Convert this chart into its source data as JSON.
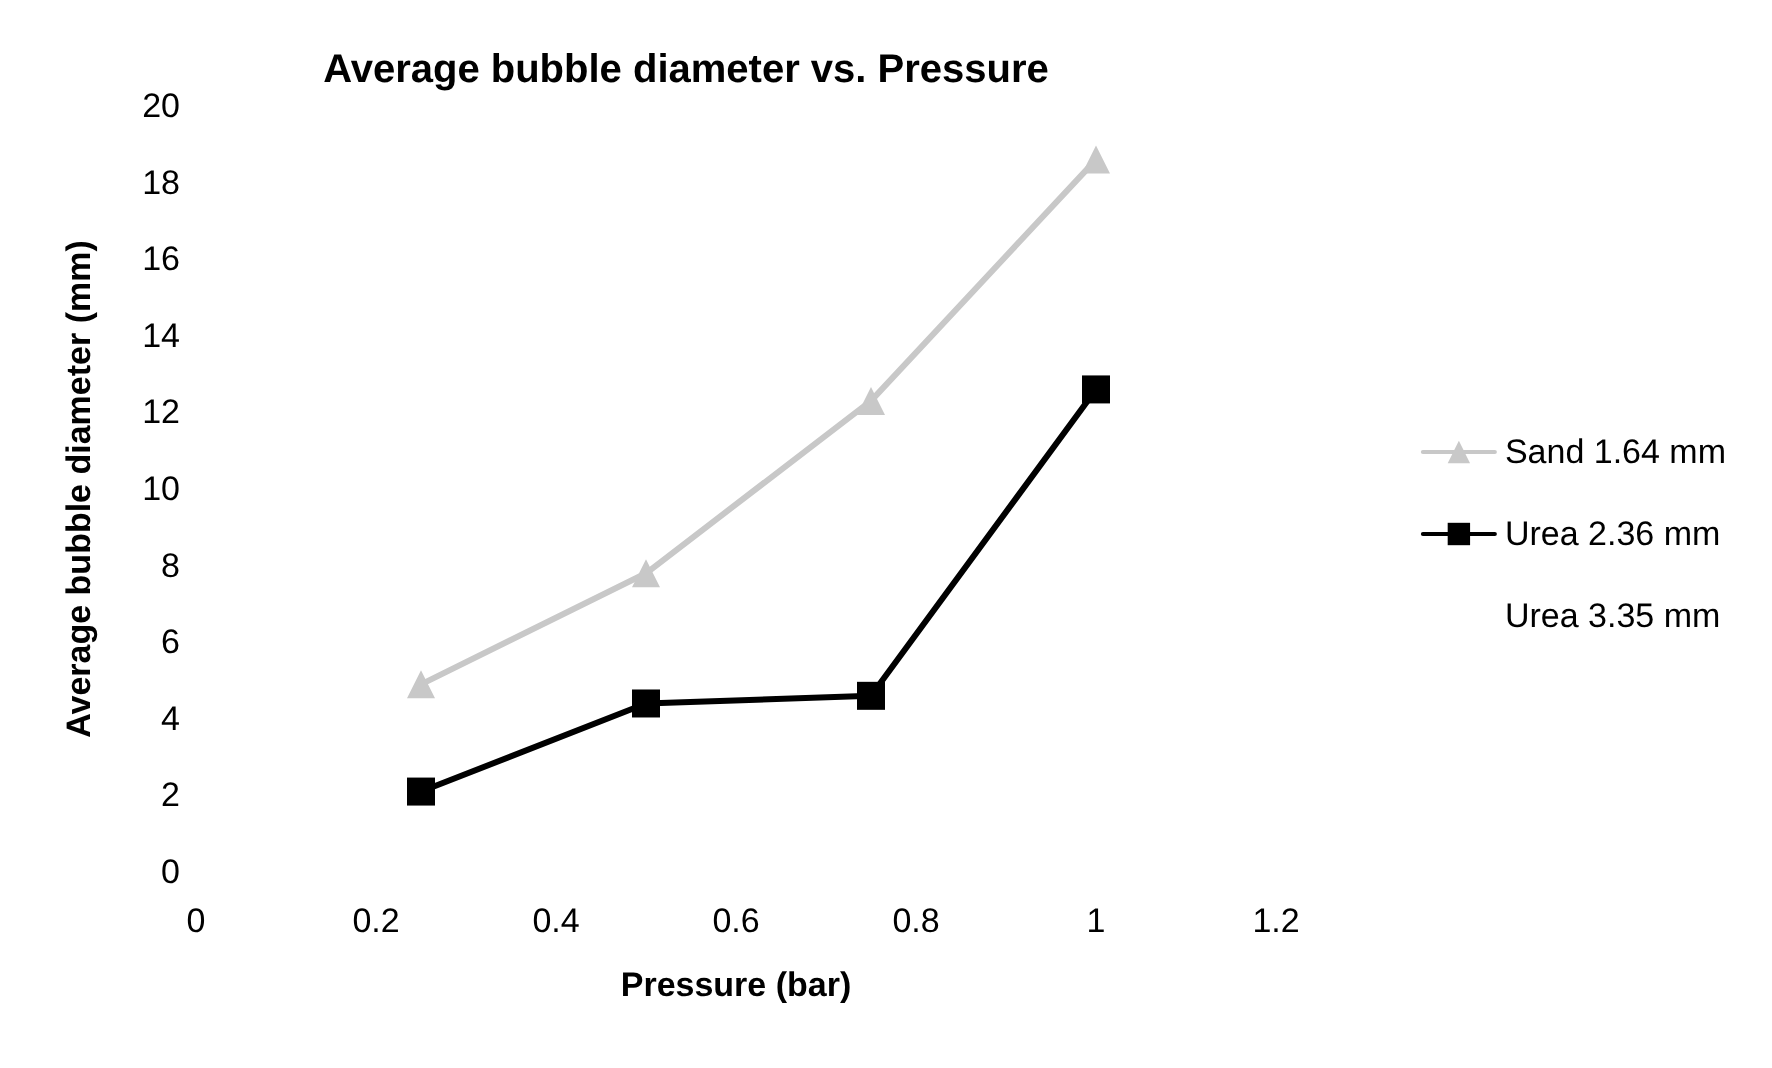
{
  "chart_data": {
    "type": "line",
    "title": "Average bubble diameter vs. Pressure",
    "xlabel": "Pressure (bar)",
    "ylabel": "Average bubble diameter (mm)",
    "x": [
      0.25,
      0.5,
      0.75,
      1
    ],
    "xlim": [
      0,
      1.2
    ],
    "xticks": [
      0,
      0.2,
      0.4,
      0.6,
      0.8,
      1,
      1.2
    ],
    "ylim": [
      0,
      20
    ],
    "yticks": [
      0,
      2,
      4,
      6,
      8,
      10,
      12,
      14,
      16,
      18,
      20
    ],
    "grid": false,
    "legend": "right",
    "series": [
      {
        "name": "Sand 1.64 mm",
        "color": "#c8c8c8",
        "marker": "triangle",
        "values": [
          4.9,
          7.8,
          12.3,
          18.6
        ]
      },
      {
        "name": "Urea 2.36 mm",
        "color": "#000000",
        "marker": "square",
        "values": [
          2.1,
          4.4,
          4.6,
          12.6
        ]
      },
      {
        "name": "Urea 3.35 mm",
        "marker": "none",
        "values": [
          null,
          null,
          null,
          null
        ]
      }
    ]
  }
}
